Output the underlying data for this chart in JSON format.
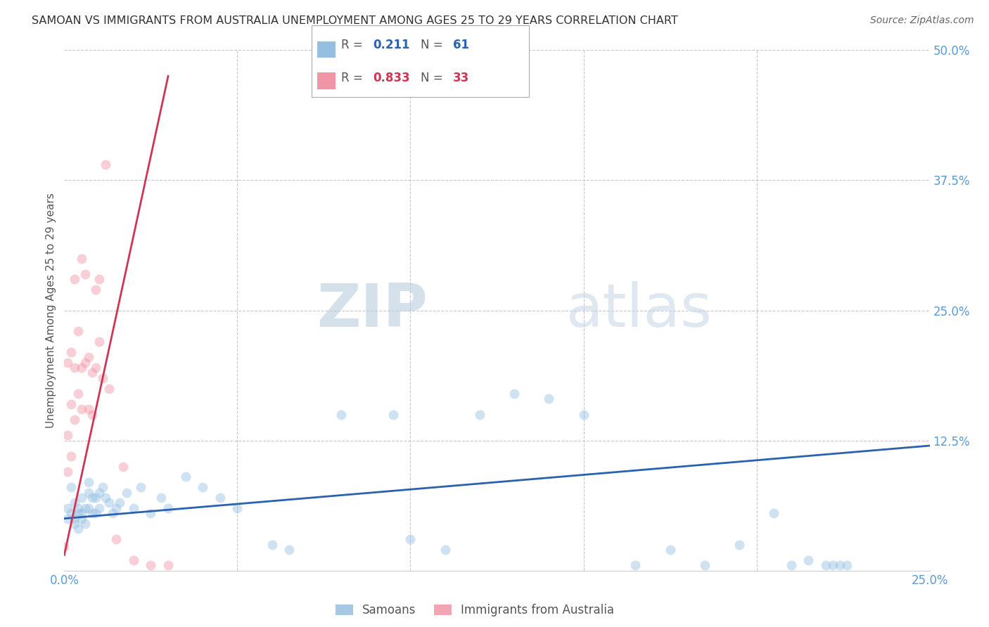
{
  "title": "SAMOAN VS IMMIGRANTS FROM AUSTRALIA UNEMPLOYMENT AMONG AGES 25 TO 29 YEARS CORRELATION CHART",
  "source": "Source: ZipAtlas.com",
  "ylabel": "Unemployment Among Ages 25 to 29 years",
  "watermark_zip": "ZIP",
  "watermark_atlas": "atlas",
  "xlim": [
    0.0,
    0.25
  ],
  "ylim": [
    0.0,
    0.5
  ],
  "xticks": [
    0.0,
    0.05,
    0.1,
    0.15,
    0.2,
    0.25
  ],
  "yticks": [
    0.0,
    0.125,
    0.25,
    0.375,
    0.5
  ],
  "ytick_labels": [
    "",
    "12.5%",
    "25.0%",
    "37.5%",
    "50.0%"
  ],
  "xtick_labels": [
    "0.0%",
    "",
    "",
    "",
    "",
    "25.0%"
  ],
  "R_samoan": "0.211",
  "N_samoan": "61",
  "R_immigrants": "0.833",
  "N_immigrants": "33",
  "label_samoans": "Samoans",
  "label_immigrants": "Immigrants from Australia",
  "samoans_x": [
    0.001,
    0.001,
    0.002,
    0.002,
    0.003,
    0.003,
    0.003,
    0.004,
    0.004,
    0.004,
    0.005,
    0.005,
    0.005,
    0.006,
    0.006,
    0.007,
    0.007,
    0.007,
    0.008,
    0.008,
    0.009,
    0.009,
    0.01,
    0.01,
    0.011,
    0.012,
    0.013,
    0.014,
    0.015,
    0.016,
    0.018,
    0.02,
    0.022,
    0.025,
    0.028,
    0.03,
    0.035,
    0.04,
    0.045,
    0.05,
    0.06,
    0.065,
    0.08,
    0.095,
    0.1,
    0.11,
    0.12,
    0.13,
    0.14,
    0.15,
    0.165,
    0.175,
    0.185,
    0.195,
    0.205,
    0.21,
    0.215,
    0.22,
    0.222,
    0.224,
    0.226
  ],
  "samoans_y": [
    0.06,
    0.05,
    0.08,
    0.055,
    0.065,
    0.05,
    0.045,
    0.055,
    0.06,
    0.04,
    0.07,
    0.055,
    0.05,
    0.06,
    0.045,
    0.085,
    0.075,
    0.06,
    0.07,
    0.055,
    0.07,
    0.055,
    0.075,
    0.06,
    0.08,
    0.07,
    0.065,
    0.055,
    0.06,
    0.065,
    0.075,
    0.06,
    0.08,
    0.055,
    0.07,
    0.06,
    0.09,
    0.08,
    0.07,
    0.06,
    0.025,
    0.02,
    0.15,
    0.15,
    0.03,
    0.02,
    0.15,
    0.17,
    0.165,
    0.15,
    0.005,
    0.02,
    0.005,
    0.025,
    0.055,
    0.005,
    0.01,
    0.005,
    0.005,
    0.005,
    0.005
  ],
  "immigrants_x": [
    0.0,
    0.001,
    0.001,
    0.001,
    0.002,
    0.002,
    0.002,
    0.003,
    0.003,
    0.003,
    0.004,
    0.004,
    0.005,
    0.005,
    0.005,
    0.006,
    0.006,
    0.007,
    0.007,
    0.008,
    0.008,
    0.009,
    0.009,
    0.01,
    0.01,
    0.011,
    0.012,
    0.013,
    0.015,
    0.017,
    0.02,
    0.025,
    0.03
  ],
  "immigrants_y": [
    0.023,
    0.2,
    0.13,
    0.095,
    0.21,
    0.16,
    0.11,
    0.28,
    0.195,
    0.145,
    0.23,
    0.17,
    0.3,
    0.195,
    0.155,
    0.285,
    0.2,
    0.205,
    0.155,
    0.19,
    0.15,
    0.27,
    0.195,
    0.28,
    0.22,
    0.185,
    0.39,
    0.175,
    0.03,
    0.1,
    0.01,
    0.005,
    0.005
  ],
  "blue_line_x": [
    0.0,
    0.25
  ],
  "blue_line_y": [
    0.05,
    0.12
  ],
  "pink_line_x": [
    0.0,
    0.03
  ],
  "pink_line_y": [
    0.015,
    0.475
  ],
  "dot_size": 100,
  "dot_alpha": 0.45,
  "blue_dot_color": "#95bfe0",
  "pink_dot_color": "#f095a5",
  "blue_line_color": "#2a62b0",
  "pink_line_color": "#d03555",
  "axis_tick_color": "#5b9bd5",
  "grid_color": "#c8c8c8",
  "title_color": "#333333",
  "source_color": "#666666"
}
